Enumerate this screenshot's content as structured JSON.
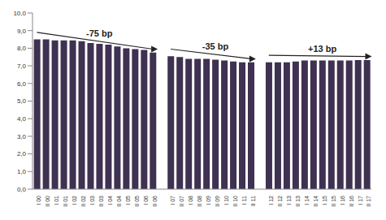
{
  "chart_data": {
    "type": "bar",
    "categories": [
      "I 00",
      "II 00",
      "I 01",
      "II 01",
      "I 02",
      "II 02",
      "I 03",
      "II 03",
      "I 04",
      "II 04",
      "I 05",
      "II 05",
      "I 06",
      "II 06",
      null,
      "I 07",
      "II 07",
      "I 08",
      "II 08",
      "I 09",
      "II 09",
      "I 10",
      "II 10",
      "I 11",
      "II 11",
      null,
      "I 12",
      "II 12",
      "I 13",
      "II 13",
      "I 14",
      "II 14",
      "I 15",
      "II 15",
      "I 16",
      "II 16",
      "I 17",
      "II 17"
    ],
    "values": [
      8.5,
      8.5,
      8.45,
      8.45,
      8.45,
      8.4,
      8.3,
      8.25,
      8.2,
      8.1,
      8.0,
      7.95,
      7.9,
      7.75,
      null,
      7.55,
      7.5,
      7.4,
      7.4,
      7.4,
      7.35,
      7.3,
      7.25,
      7.2,
      7.2,
      null,
      7.2,
      7.2,
      7.2,
      7.25,
      7.3,
      7.3,
      7.3,
      7.3,
      7.3,
      7.3,
      7.33,
      7.33
    ],
    "color": "#3f3151",
    "ylim": [
      0,
      10
    ],
    "yticks": [
      {
        "value": 0,
        "label": "0,0"
      },
      {
        "value": 1,
        "label": "1,0"
      },
      {
        "value": 2,
        "label": "2,0"
      },
      {
        "value": 3,
        "label": "3,0"
      },
      {
        "value": 4,
        "label": "4,0"
      },
      {
        "value": 5,
        "label": "5,0"
      },
      {
        "value": 6,
        "label": "6,0"
      },
      {
        "value": 7,
        "label": "7,0"
      },
      {
        "value": 8,
        "label": "8,0"
      },
      {
        "value": 9,
        "label": "9,0"
      },
      {
        "value": 10,
        "label": "10,0"
      }
    ],
    "grid": false,
    "annotations": [
      "-75 bp",
      "-35 bp",
      "+13 bp"
    ]
  }
}
